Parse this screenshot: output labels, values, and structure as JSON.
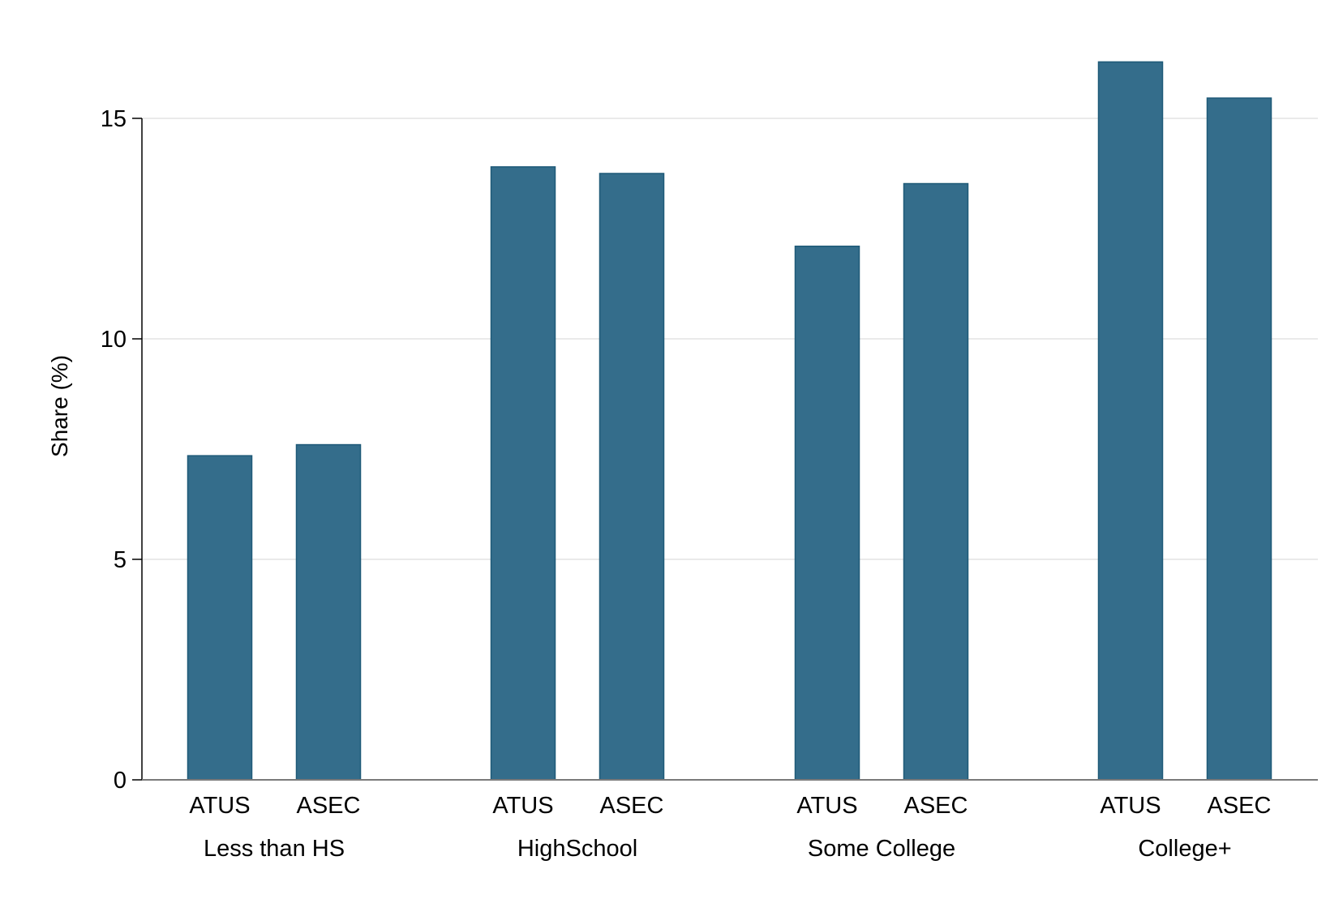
{
  "chart_data": {
    "type": "bar",
    "title": "",
    "xlabel": "",
    "ylabel": "Share (%)",
    "ylim": [
      0,
      16.7
    ],
    "yticks": [
      0,
      5,
      10,
      15
    ],
    "grid": true,
    "legend": "none",
    "colors": {
      "bar_fill": "#346d8b",
      "bar_edge": "#1f5a78",
      "grid": "#e3e3e3",
      "baseline": "#7a7a7a"
    },
    "groups": [
      {
        "label": "Less than HS",
        "bars": [
          {
            "label": "ATUS",
            "value": 7.35
          },
          {
            "label": "ASEC",
            "value": 7.6
          }
        ]
      },
      {
        "label": "HighSchool",
        "bars": [
          {
            "label": "ATUS",
            "value": 13.9
          },
          {
            "label": "ASEC",
            "value": 13.75
          }
        ]
      },
      {
        "label": "Some College",
        "bars": [
          {
            "label": "ATUS",
            "value": 12.1
          },
          {
            "label": "ASEC",
            "value": 13.52
          }
        ]
      },
      {
        "label": "College+",
        "bars": [
          {
            "label": "ATUS",
            "value": 16.28
          },
          {
            "label": "ASEC",
            "value": 15.46
          }
        ]
      }
    ]
  }
}
